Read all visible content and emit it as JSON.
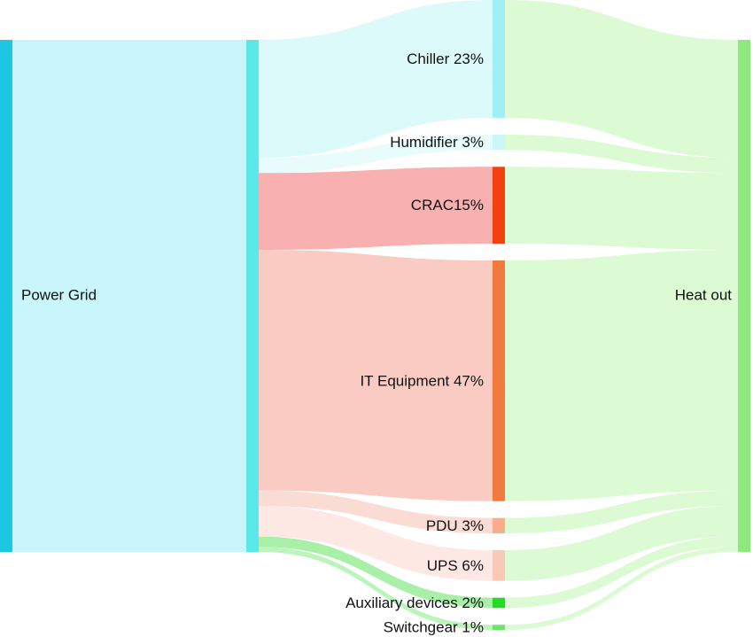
{
  "chart_data": {
    "type": "sankey",
    "source": {
      "name": "Power Grid",
      "color": "#1ec8e2",
      "flow_color": "#c8f6fa"
    },
    "hub_color": "#5ce8ea",
    "sink": {
      "name": "Heat out",
      "color": "#8ee87e",
      "flow_color": "#dcfad4"
    },
    "nodes": [
      {
        "name": "Chiller 23%",
        "value": 23,
        "color": "#9ff0f2",
        "flow_color": "#dcfafa"
      },
      {
        "name": "Humidifier 3%",
        "value": 3,
        "color": "#cdf6f8",
        "flow_color": "#e8fcfc"
      },
      {
        "name": "CRAC15%",
        "value": 15,
        "color": "#f2400f",
        "flow_color": "#f8b0b0"
      },
      {
        "name": "IT Equipment 47%",
        "value": 47,
        "color": "#f27a3e",
        "flow_color": "#f9cbc2"
      },
      {
        "name": "PDU 3%",
        "value": 3,
        "color": "#f8ae8e",
        "flow_color": "#fbdcd4"
      },
      {
        "name": "UPS 6%",
        "value": 6,
        "color": "#f9cab8",
        "flow_color": "#fde8e4"
      },
      {
        "name": "Auxiliary devices 2%",
        "value": 2,
        "color": "#24dc28",
        "flow_color": "#a8f0a8"
      },
      {
        "name": "Switchgear 1%",
        "value": 1,
        "color": "#6ae66a",
        "flow_color": "#bcf4bc"
      }
    ]
  }
}
